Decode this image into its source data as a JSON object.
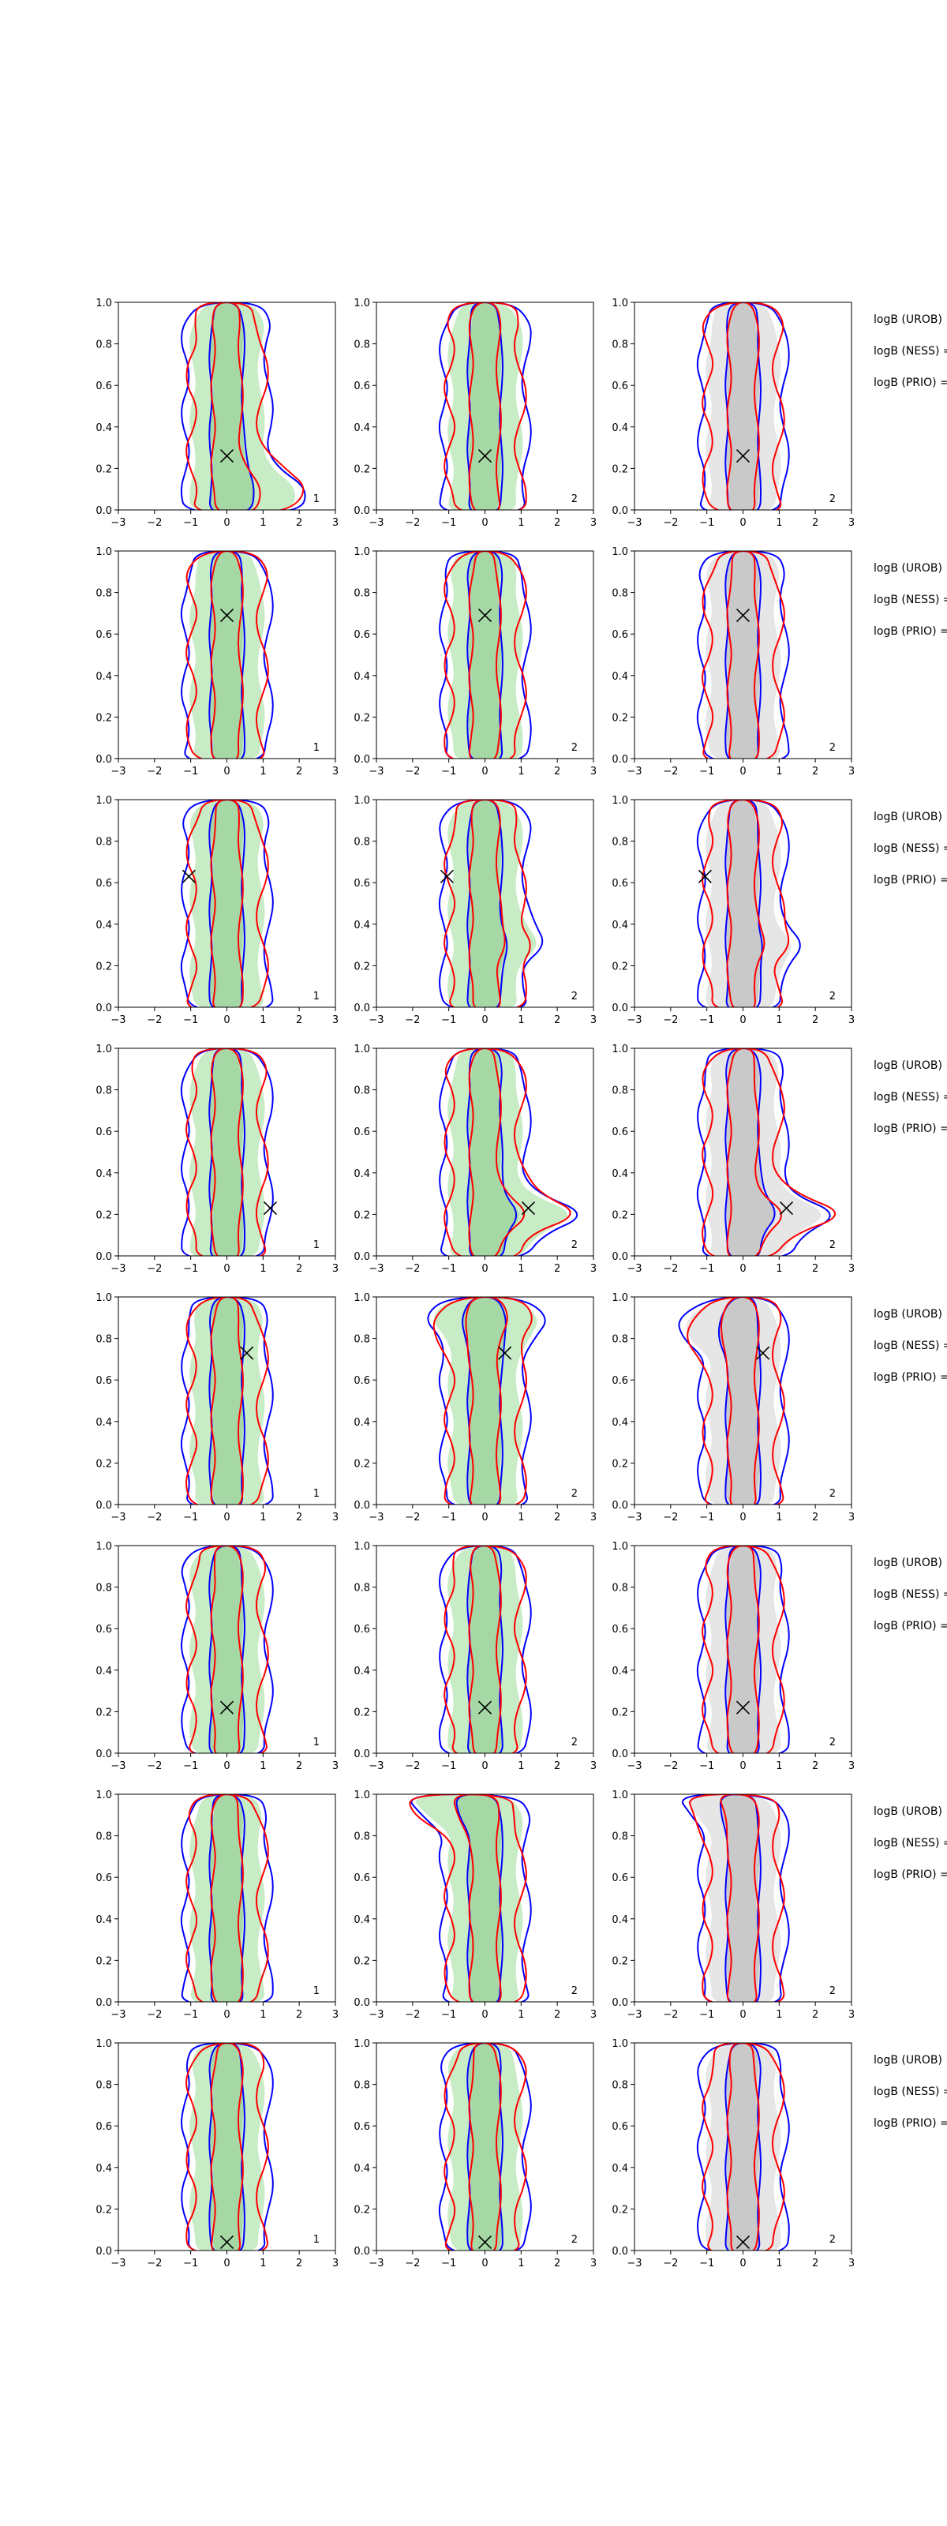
{
  "colors": {
    "background": "#ffffff",
    "blue_contour": "#0000ff",
    "red_contour": "#ff0000",
    "green_fill": "#c7ecc6",
    "green_fill_dark": "#a6d8a6",
    "grey_fill": "#e6e6e6",
    "grey_fill_dark": "#c9c9c9",
    "marker": "#000000",
    "axis": "#000000"
  },
  "chart_data": {
    "type": "contour",
    "layout": {
      "rows": 8,
      "cols": 3
    },
    "title": "",
    "xlabel": "",
    "ylabel": "",
    "xlim": [
      -3,
      3
    ],
    "ylim": [
      0,
      1
    ],
    "x_ticks": [
      "−3",
      "−2",
      "−1",
      "0",
      "1",
      "2",
      "3"
    ],
    "y_ticks": [
      "0.0",
      "0.2",
      "0.4",
      "0.6",
      "0.8",
      "1.0"
    ],
    "panel_labels": [
      "1",
      "2",
      "2"
    ],
    "column_fills": [
      "green",
      "green",
      "grey"
    ],
    "row_side_labels": [
      [
        "logB (UROB) =",
        "logB (NESS) =",
        "logB (PRIO) ="
      ],
      [
        "logB (UROB) =",
        "logB (NESS) =",
        "logB (PRIO) ="
      ],
      [
        "logB (UROB) =",
        "logB (NESS) =",
        "logB (PRIO) ="
      ],
      [
        "logB (UROB) =",
        "logB (NESS) =",
        "logB (PRIO) ="
      ],
      [
        "logB (UROB) =",
        "logB (NESS) =",
        "logB (PRIO) ="
      ],
      [
        "logB (UROB) =",
        "logB (NESS) =",
        "logB (PRIO) ="
      ],
      [
        "logB (UROB) =",
        "logB (NESS) =",
        "logB (PRIO) ="
      ],
      [
        "logB (UROB) =",
        "logB (NESS) =",
        "logB (PRIO) ="
      ]
    ],
    "true_values": [
      {
        "x": 0.0,
        "y": 0.26
      },
      {
        "x": 0.0,
        "y": 0.69
      },
      {
        "x": -1.05,
        "y": 0.63
      },
      {
        "x": 1.2,
        "y": 0.23
      },
      {
        "x": 0.55,
        "y": 0.73
      },
      {
        "x": 0.0,
        "y": 0.22
      },
      null,
      {
        "x": 0.0,
        "y": 0.04
      }
    ],
    "row_features": [
      {
        "row": 1,
        "panel": 1,
        "note": "blue and red contours widen toward a lobe near x≈1.5 at low y"
      },
      {
        "row": 3,
        "panel": 2,
        "note": "blue contour kink near x≈1.2, y≈0.35"
      },
      {
        "row": 4,
        "panel": 2,
        "note": "red contours extend to x≈2.3 around y≈0.2; green patch toward x≈-2.5"
      },
      {
        "row": 4,
        "panel": 3,
        "note": "red contours extend to x≈2.3 around y≈0.2"
      },
      {
        "row": 5,
        "panel": 2,
        "note": "red contours widen near the top (x≈±1.4, y≈0.9)"
      },
      {
        "row": 5,
        "panel": 3,
        "note": "red contours widen near the top (x≈-1.5, y≈0.85)"
      },
      {
        "row": 7,
        "panel": 2,
        "note": "red contours bend toward x≈-2.3 at y≈1.0"
      },
      {
        "row": 7,
        "panel": 3,
        "note": "red contour bends toward x≈-1.7 at y≈1.0"
      }
    ]
  }
}
